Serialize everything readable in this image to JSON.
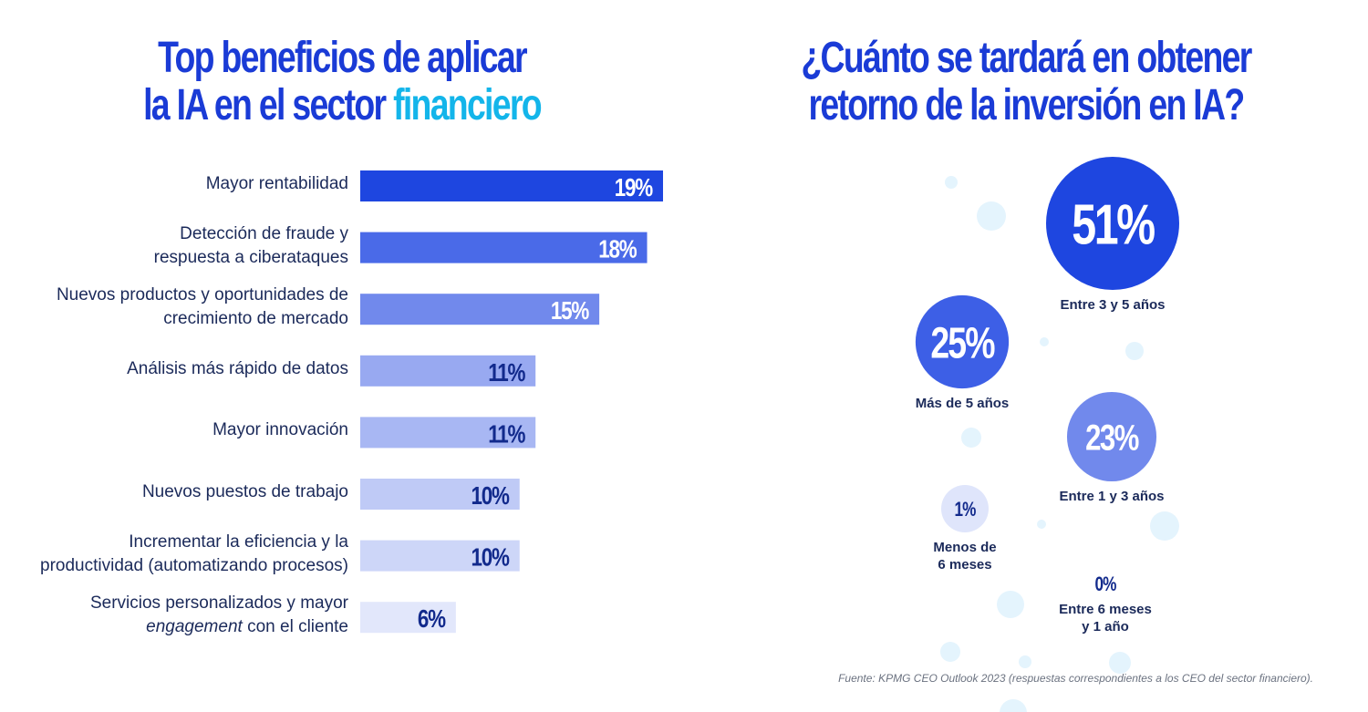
{
  "colors": {
    "title": "#1a3bd6",
    "title_accent": "#13b5ea",
    "label_text": "#1b2a5a",
    "source_text": "#6b7280",
    "bar_value_light": "#ffffff",
    "bar_value_dark": "#122a8c",
    "deco_bubble": "#e4f4fd"
  },
  "left_title": {
    "line1": "Top beneficios de aplicar",
    "line2_prefix": "la IA en el sector ",
    "line2_accent": "financiero"
  },
  "right_title": {
    "line1": "¿Cuánto se tardará en obtener",
    "line2": "retorno de la inversión en IA?"
  },
  "chart_data": [
    {
      "type": "bar",
      "orientation": "horizontal",
      "title": "Top beneficios de aplicar la IA en el sector financiero",
      "xlim": [
        0,
        19
      ],
      "grid": false,
      "categories": [
        [
          "Mayor rentabilidad"
        ],
        [
          "Detección de fraude y",
          "respuesta a ciberataques"
        ],
        [
          "Nuevos productos y oportunidades de",
          "crecimiento de mercado"
        ],
        [
          "Análisis más rápido de datos"
        ],
        [
          "Mayor innovación"
        ],
        [
          "Nuevos puestos de trabajo"
        ],
        [
          "Incrementar la eficiencia y la",
          "productividad (automatizando procesos)"
        ],
        [
          "Servicios personalizados y mayor",
          "engagement con el cliente"
        ]
      ],
      "values": [
        19,
        18,
        15,
        11,
        11,
        10,
        10,
        6
      ],
      "value_labels": [
        "19%",
        "18%",
        "15%",
        "11%",
        "11%",
        "10%",
        "10%",
        "6%"
      ],
      "bar_colors": [
        "#1e46e0",
        "#4a6ae8",
        "#7189ec",
        "#98a9f1",
        "#a8b7f3",
        "#bfcaf6",
        "#cdd6f8",
        "#e2e7fb"
      ],
      "italic_words": [
        "engagement"
      ]
    },
    {
      "type": "bubble",
      "title": "¿Cuánto se tardará en obtener retorno de la inversión en IA?",
      "items": [
        {
          "value": 51,
          "value_label": "51%",
          "label": [
            "Entre 3 y 5 años"
          ],
          "color": "#1e46e0"
        },
        {
          "value": 25,
          "value_label": "25%",
          "label": [
            "Más de 5 años"
          ],
          "color": "#3d5fe6"
        },
        {
          "value": 23,
          "value_label": "23%",
          "label": [
            "Entre 1 y 3 años"
          ],
          "color": "#7189ec"
        },
        {
          "value": 1,
          "value_label": "1%",
          "label": [
            "Menos de",
            "6 meses"
          ],
          "color": "#dfe5fb"
        },
        {
          "value": 0,
          "value_label": "0%",
          "label": [
            "Entre 6 meses",
            "y 1 año"
          ],
          "color": "#ffffff"
        }
      ]
    }
  ],
  "source": "Fuente: KPMG CEO Outlook 2023 (respuestas correspondientes a los CEO del sector financiero)."
}
